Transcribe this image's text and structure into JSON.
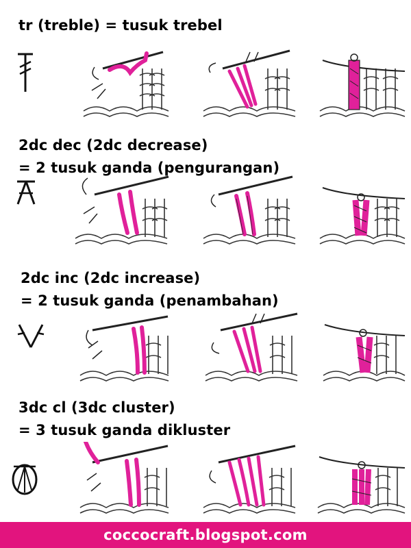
{
  "colors": {
    "pink": "#e2147e",
    "yarn": "#e0219a",
    "ink": "#111111",
    "hatch": "#555555"
  },
  "sections": [
    {
      "title_lines": [
        "tr (treble) = tusuk trebel"
      ],
      "symbol": "treble-symbol"
    },
    {
      "title_lines": [
        "2dc dec (2dc decrease)",
        "= 2 tusuk ganda (pengurangan)"
      ],
      "symbol": "decrease-symbol"
    },
    {
      "title_lines": [
        "2dc inc (2dc increase)",
        "= 2 tusuk ganda (penambahan)"
      ],
      "symbol": "increase-symbol"
    },
    {
      "title_lines": [
        "3dc cl (3dc cluster)",
        "= 3 tusuk ganda dikluster"
      ],
      "symbol": "cluster-symbol"
    }
  ],
  "footer": {
    "text": "coccocraft.blogspot.com"
  }
}
